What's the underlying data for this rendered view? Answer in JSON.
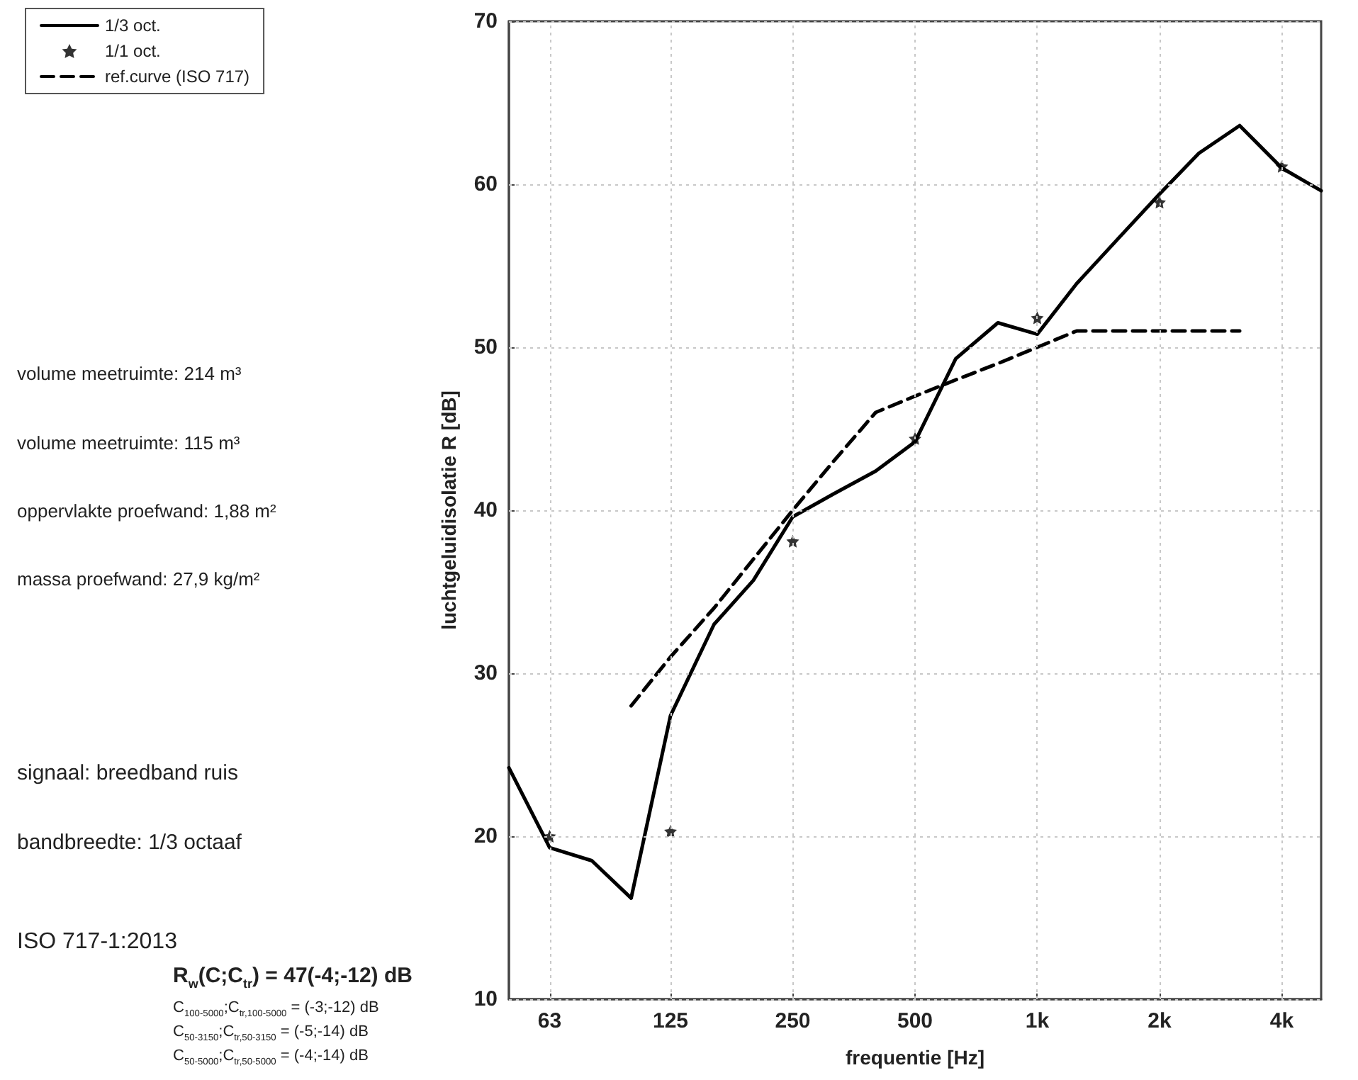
{
  "chart_data": {
    "type": "line",
    "xlabel": "frequentie [Hz]",
    "ylabel": "luchtgeluidisolatie R [dB]",
    "log": "x",
    "xlim": [
      50,
      5000
    ],
    "xticks": [
      {
        "value": 63,
        "label": "63"
      },
      {
        "value": 125,
        "label": "125"
      },
      {
        "value": 250,
        "label": "250"
      },
      {
        "value": 500,
        "label": "500"
      },
      {
        "value": 1000,
        "label": "1k"
      },
      {
        "value": 2000,
        "label": "2k"
      },
      {
        "value": 4000,
        "label": "4k"
      }
    ],
    "ylim": [
      10,
      70
    ],
    "yticks": [
      10,
      20,
      30,
      40,
      50,
      60,
      70
    ],
    "grid": true,
    "legend": "top left",
    "series": [
      {
        "name": "1/3 oct.",
        "color": "#000000",
        "marker": "none",
        "line_style": "solid",
        "x": [
          50,
          63,
          80,
          100,
          125,
          160,
          200,
          250,
          315,
          400,
          500,
          630,
          800,
          1000,
          1250,
          1600,
          2000,
          2500,
          3150,
          4000,
          5000
        ],
        "values": [
          24.2,
          19.3,
          18.5,
          16.2,
          27.4,
          33.0,
          35.7,
          39.6,
          41.0,
          42.4,
          44.2,
          49.3,
          51.5,
          50.8,
          53.9,
          56.8,
          59.4,
          61.9,
          63.6,
          61.0,
          59.6
        ]
      },
      {
        "name": "1/1 oct.",
        "type": "scatter",
        "color": "#000000",
        "marker": "star",
        "x": [
          63,
          125,
          250,
          500,
          1000,
          2000,
          4000
        ],
        "values": [
          20.0,
          20.3,
          38.1,
          44.4,
          51.8,
          58.9,
          61.1
        ]
      },
      {
        "name": "ref.curve (ISO 717)",
        "color": "#000000",
        "marker": "none",
        "line_style": "dashed",
        "x": [
          100,
          125,
          160,
          200,
          250,
          315,
          400,
          500,
          630,
          800,
          1000,
          1250,
          1600,
          2000,
          2500,
          3150
        ],
        "values": [
          28,
          31,
          34,
          37,
          40,
          43,
          46,
          47,
          48,
          49,
          50,
          51,
          51,
          51,
          51,
          51
        ]
      }
    ],
    "annotations": [
      "volume meetruimte: 214 m³",
      "volume meetruimte: 115 m³",
      "oppervlakte proefwand: 1,88 m²",
      "massa proefwand: 27,9 kg/m²",
      "signaal: breedband ruis",
      "bandbreedte: 1/3 octaaf",
      "ISO 717-1:2013",
      "R$_{w}$(C;C$_{tr}$) = 47(-4;-12) dB",
      "C$_{100-5000}$;C$_{tr,100-5000}$ = (-3;-12) dB",
      "C$_{50-3150}$;C$_{tr,50-3150}$ = (-5;-14) dB",
      "C$_{50-5000}$;C$_{tr,50-5000}$ = (-4;-14) dB"
    ]
  }
}
